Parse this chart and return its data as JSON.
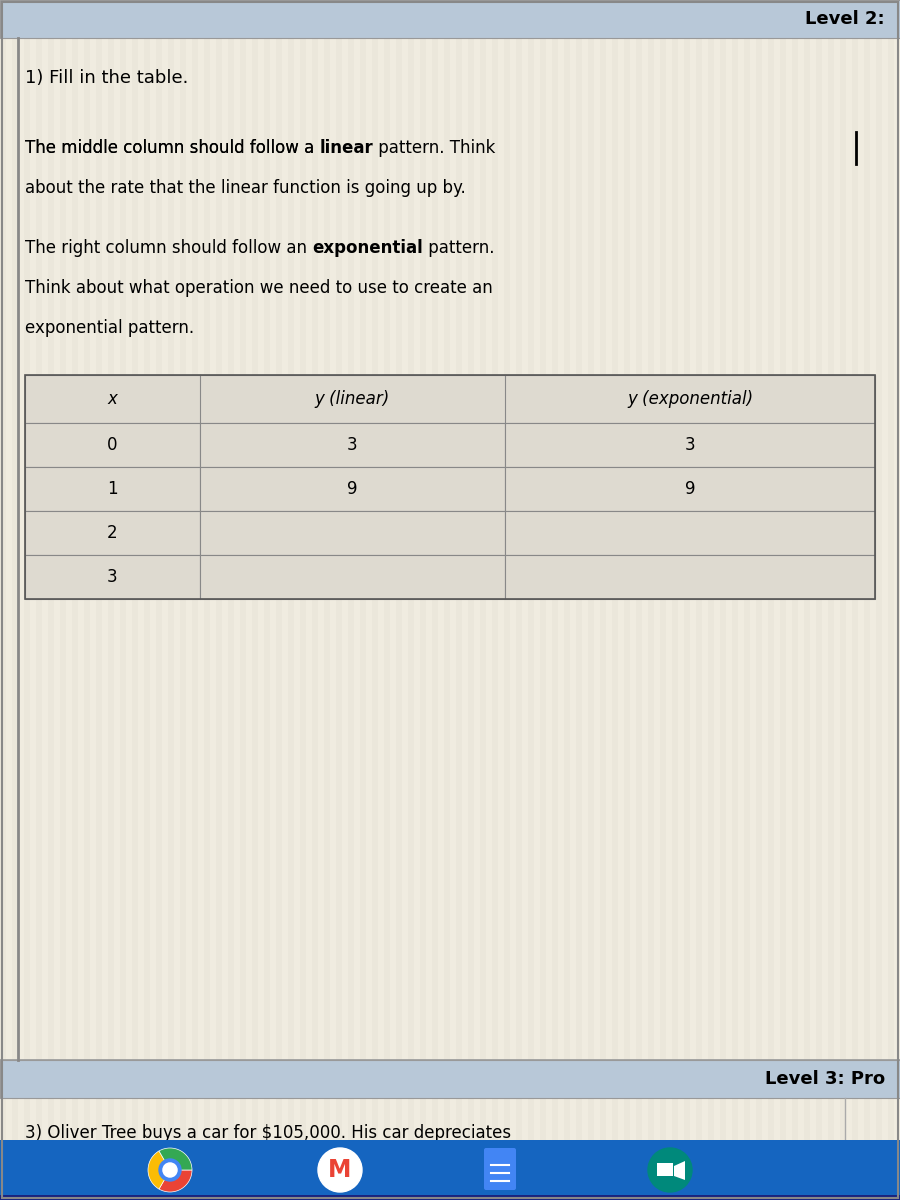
{
  "page_bg": "#f0ece0",
  "stripe_color": "#e8e4d8",
  "header_bg": "#b8c8d8",
  "header_text": "Level 2:",
  "section1_title": "1) Fill in the table.",
  "para1_line1_pre": "The middle column should follow a ",
  "para1_line1_bold": "linear",
  "para1_line1_post": " pattern. Think",
  "para1_line2": "about the rate that the linear function is going up by.",
  "para2_line1_pre": "The right column should follow an ",
  "para2_line1_bold": "exponential",
  "para2_line1_post": " pattern.",
  "para2_line2": "Think about what operation we need to use to create an",
  "para2_line3": "exponential pattern.",
  "table_headers": [
    "x",
    "y (linear)",
    "y (exponential)"
  ],
  "table_x": [
    "0",
    "1",
    "2",
    "3"
  ],
  "table_y_linear": [
    "3",
    "9",
    "",
    ""
  ],
  "table_y_exp": [
    "3",
    "9",
    "",
    ""
  ],
  "footer_header_text": "Level 3: Pro",
  "footer_text": "3) Oliver Tree buys a car for $105,000. His car depreciates",
  "taskbar_color": "#1565c0",
  "cell_bg": "#dedad0",
  "table_border_color": "#888888",
  "font_size_header": 13,
  "font_size_body": 12,
  "font_size_table": 12
}
